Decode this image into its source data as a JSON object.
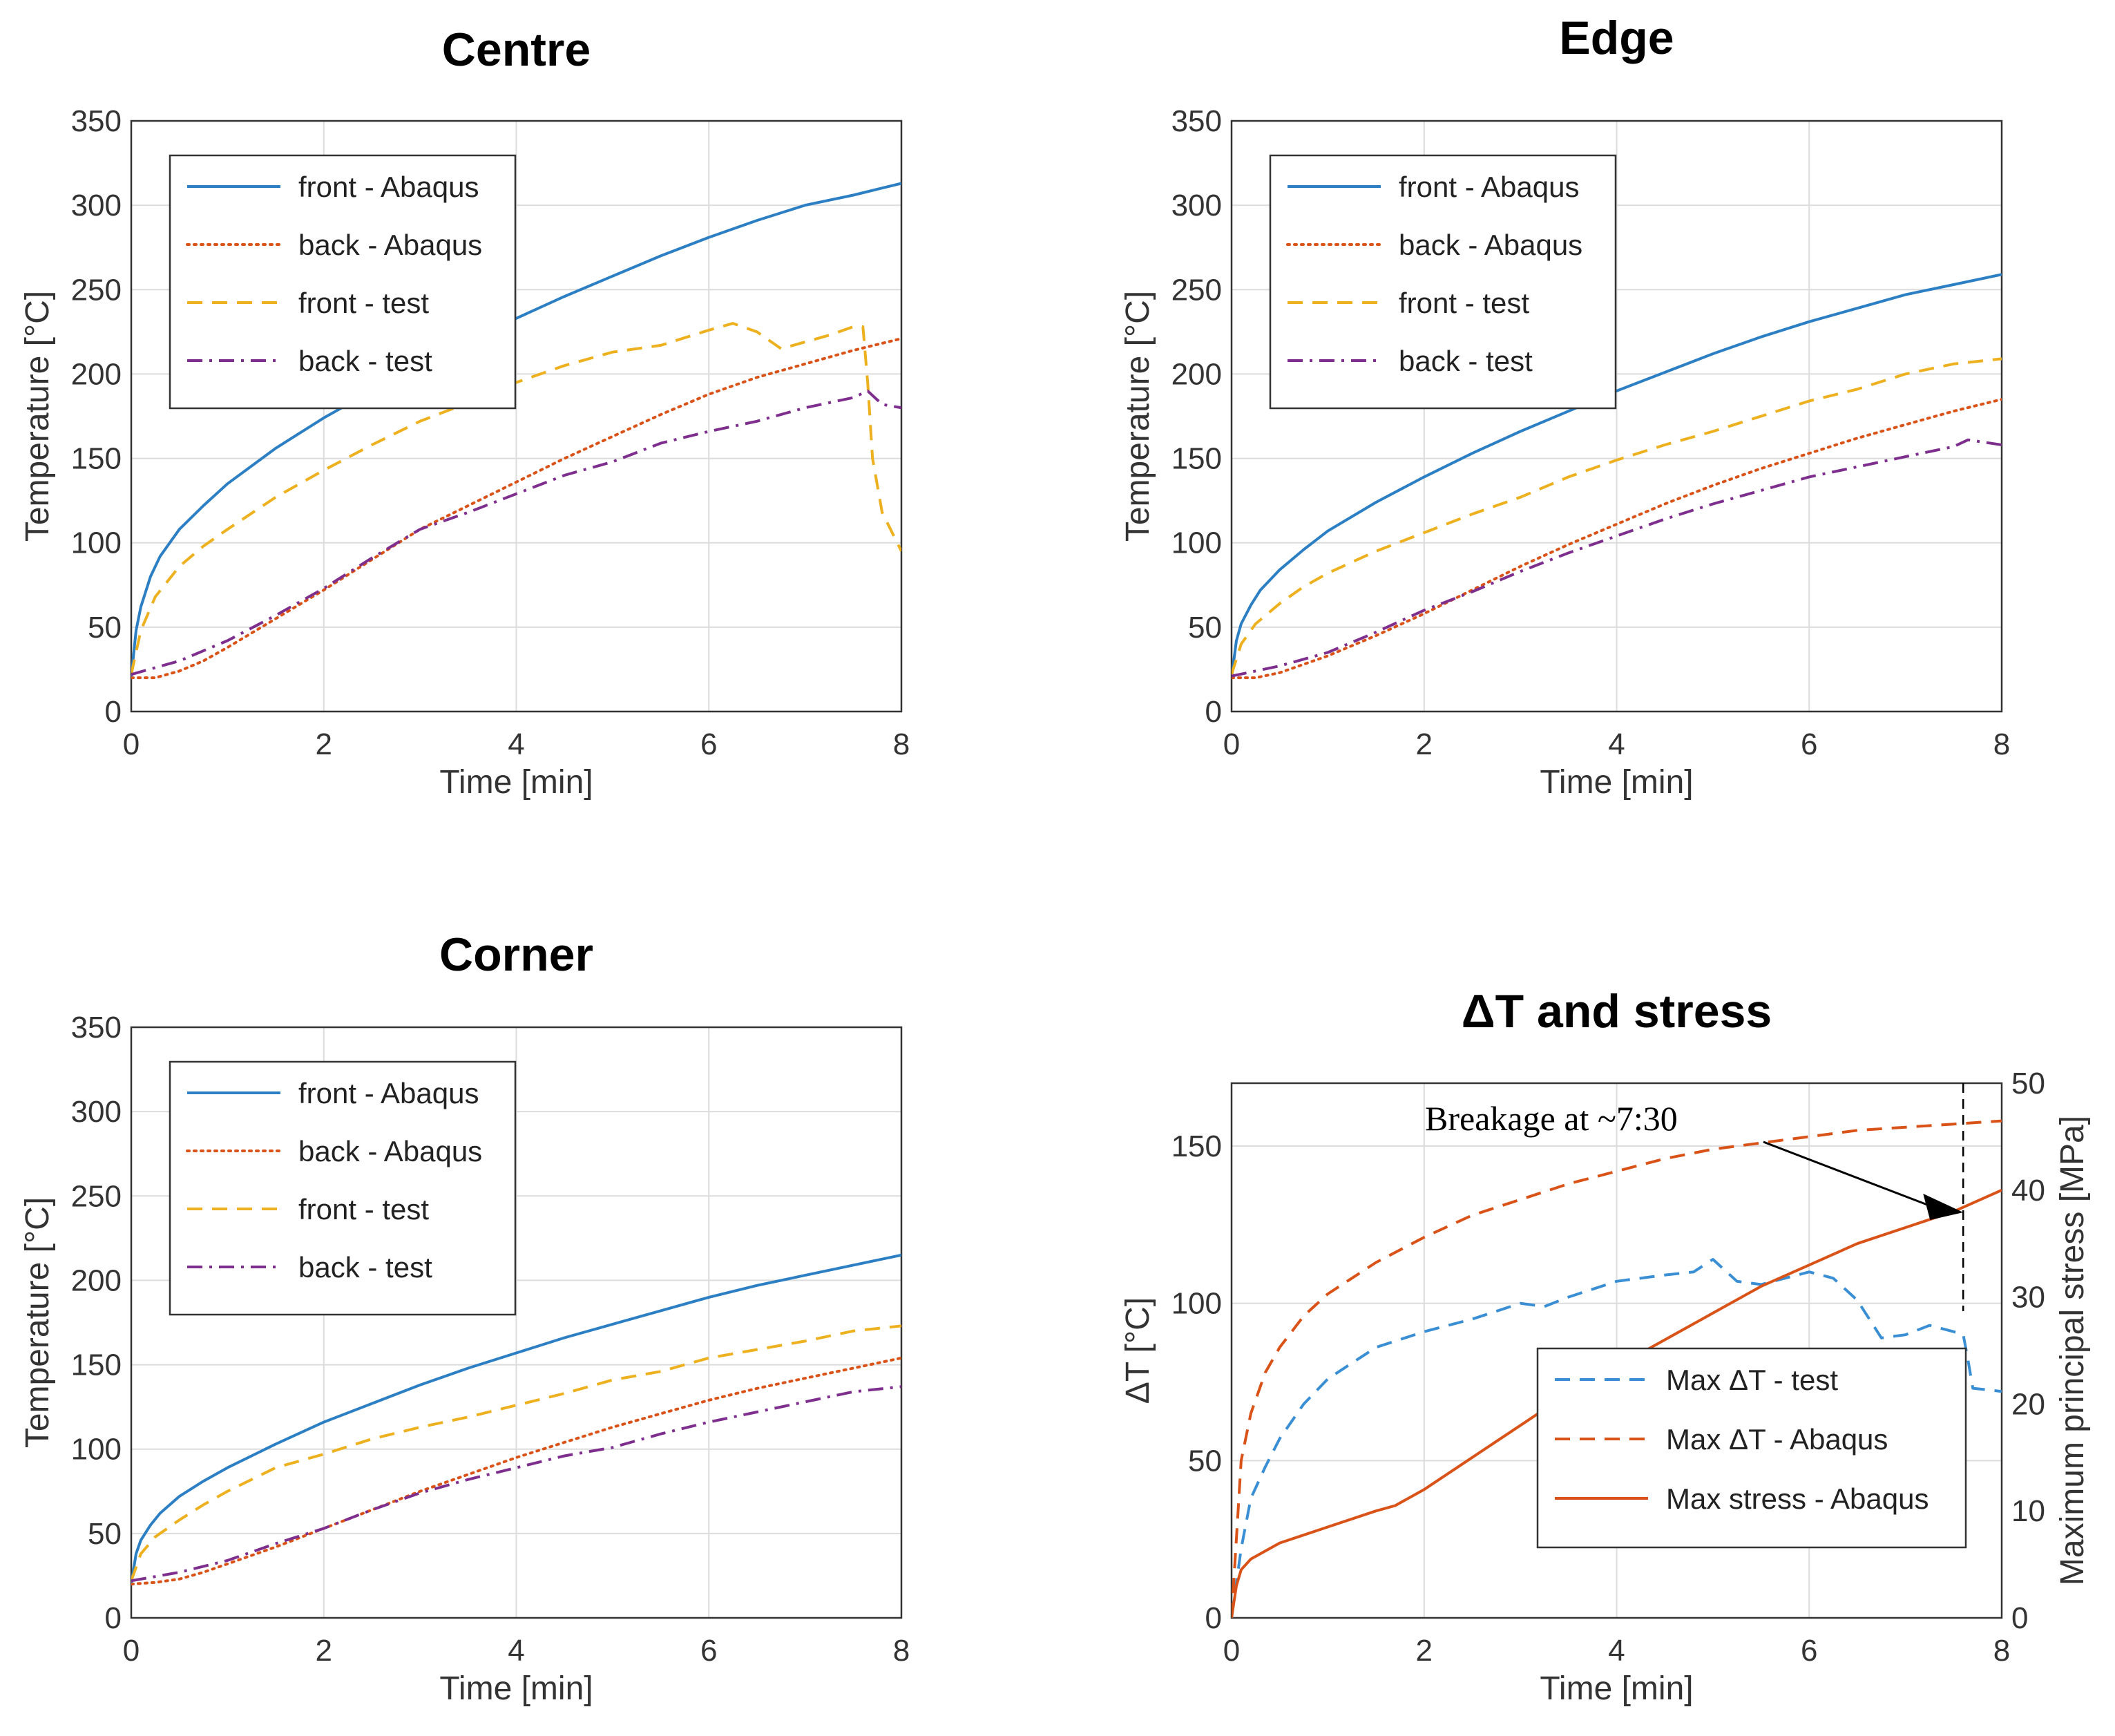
{
  "colors": {
    "front_abaqus": "#2d7fc4",
    "back_abaqus": "#d95319",
    "front_test": "#edb120",
    "back_test": "#7e2f8e",
    "dt_test": "#3a8fd4",
    "dt_abaqus": "#d95319",
    "stress": "#d95319"
  },
  "chart_data": [
    {
      "id": "centre",
      "type": "line",
      "title": "Centre",
      "xlabel": "Time [min]",
      "ylabel": "Temperature [°C]",
      "xlim": [
        0,
        8
      ],
      "ylim": [
        0,
        350
      ],
      "xticks": [
        0,
        2,
        4,
        6,
        8
      ],
      "yticks": [
        0,
        50,
        100,
        150,
        200,
        250,
        300,
        350
      ],
      "grid": true,
      "legend": "top-left",
      "series": [
        {
          "name": "front - Abaqus",
          "style": "solid",
          "color_key": "front_abaqus",
          "x": [
            0,
            0.05,
            0.1,
            0.2,
            0.3,
            0.5,
            0.75,
            1,
            1.5,
            2,
            2.5,
            3,
            3.5,
            4,
            4.5,
            5,
            5.5,
            6,
            6.5,
            7,
            7.5,
            8
          ],
          "y": [
            20,
            48,
            62,
            80,
            92,
            108,
            122,
            135,
            156,
            174,
            190,
            205,
            219,
            233,
            246,
            258,
            270,
            281,
            291,
            300,
            306,
            313
          ]
        },
        {
          "name": "back - Abaqus",
          "style": "dotted",
          "color_key": "back_abaqus",
          "x": [
            0,
            0.25,
            0.5,
            0.75,
            1,
            1.5,
            2,
            2.5,
            3,
            3.5,
            4,
            4.5,
            5,
            5.5,
            6,
            6.5,
            7,
            7.5,
            8
          ],
          "y": [
            20,
            20,
            24,
            30,
            38,
            55,
            72,
            90,
            108,
            122,
            136,
            150,
            163,
            176,
            188,
            198,
            206,
            214,
            221
          ]
        },
        {
          "name": "front - test",
          "style": "dashed",
          "color_key": "front_test",
          "x": [
            0,
            0.1,
            0.25,
            0.5,
            0.75,
            1,
            1.5,
            2,
            2.5,
            3,
            3.5,
            4,
            4.5,
            5,
            5.5,
            6,
            6.25,
            6.5,
            6.75,
            7,
            7.25,
            7.5,
            7.6,
            7.65,
            7.7,
            7.8,
            8
          ],
          "y": [
            22,
            48,
            68,
            86,
            98,
            108,
            127,
            143,
            158,
            172,
            183,
            195,
            205,
            213,
            217,
            226,
            230,
            225,
            215,
            219,
            223,
            228,
            228,
            195,
            150,
            118,
            95
          ]
        },
        {
          "name": "back - test",
          "style": "dashdot",
          "color_key": "back_test",
          "x": [
            0,
            0.5,
            1,
            1.5,
            2,
            2.5,
            3,
            3.5,
            4,
            4.5,
            5,
            5.5,
            6,
            6.5,
            7,
            7.5,
            7.65,
            7.8,
            8
          ],
          "y": [
            22,
            30,
            42,
            57,
            73,
            91,
            108,
            118,
            129,
            140,
            148,
            159,
            166,
            172,
            180,
            186,
            190,
            182,
            180
          ]
        }
      ]
    },
    {
      "id": "edge",
      "type": "line",
      "title": "Edge",
      "xlabel": "Time [min]",
      "ylabel": "Temperature [°C]",
      "xlim": [
        0,
        8
      ],
      "ylim": [
        0,
        350
      ],
      "xticks": [
        0,
        2,
        4,
        6,
        8
      ],
      "yticks": [
        0,
        50,
        100,
        150,
        200,
        250,
        300,
        350
      ],
      "grid": true,
      "legend": "top-left",
      "series": [
        {
          "name": "front - Abaqus",
          "style": "solid",
          "color_key": "front_abaqus",
          "x": [
            0,
            0.05,
            0.1,
            0.2,
            0.3,
            0.5,
            0.75,
            1,
            1.5,
            2,
            2.5,
            3,
            3.5,
            4,
            4.5,
            5,
            5.5,
            6,
            6.5,
            7,
            7.5,
            8
          ],
          "y": [
            20,
            42,
            52,
            63,
            72,
            84,
            96,
            107,
            124,
            139,
            153,
            166,
            178,
            190,
            201,
            212,
            222,
            231,
            239,
            247,
            253,
            259
          ]
        },
        {
          "name": "back - Abaqus",
          "style": "dotted",
          "color_key": "back_abaqus",
          "x": [
            0,
            0.25,
            0.5,
            0.75,
            1,
            1.5,
            2,
            2.5,
            3,
            3.5,
            4,
            4.5,
            5,
            5.5,
            6,
            6.5,
            7,
            7.5,
            8
          ],
          "y": [
            20,
            20,
            23,
            28,
            33,
            45,
            58,
            72,
            86,
            99,
            111,
            123,
            134,
            144,
            153,
            162,
            170,
            178,
            185
          ]
        },
        {
          "name": "front - test",
          "style": "dashed",
          "color_key": "front_test",
          "x": [
            0,
            0.1,
            0.25,
            0.5,
            0.75,
            1,
            1.5,
            2,
            2.5,
            3,
            3.5,
            4,
            4.5,
            5,
            5.5,
            6,
            6.5,
            7,
            7.5,
            8
          ],
          "y": [
            22,
            40,
            52,
            64,
            74,
            82,
            95,
            106,
            117,
            127,
            139,
            149,
            158,
            166,
            175,
            184,
            191,
            200,
            206,
            209
          ]
        },
        {
          "name": "back - test",
          "style": "dashdot",
          "color_key": "back_test",
          "x": [
            0,
            0.5,
            1,
            1.5,
            2,
            2.5,
            3,
            3.5,
            4,
            4.5,
            5,
            5.5,
            6,
            6.5,
            7,
            7.5,
            7.65,
            8
          ],
          "y": [
            21,
            27,
            35,
            47,
            60,
            71,
            83,
            94,
            104,
            114,
            123,
            131,
            139,
            145,
            151,
            157,
            161,
            158
          ]
        }
      ]
    },
    {
      "id": "corner",
      "type": "line",
      "title": "Corner",
      "xlabel": "Time [min]",
      "ylabel": "Temperature [°C]",
      "xlim": [
        0,
        8
      ],
      "ylim": [
        0,
        350
      ],
      "xticks": [
        0,
        2,
        4,
        6,
        8
      ],
      "yticks": [
        0,
        50,
        100,
        150,
        200,
        250,
        300,
        350
      ],
      "grid": true,
      "legend": "top-left",
      "series": [
        {
          "name": "front - Abaqus",
          "style": "solid",
          "color_key": "front_abaqus",
          "x": [
            0,
            0.05,
            0.1,
            0.2,
            0.3,
            0.5,
            0.75,
            1,
            1.5,
            2,
            2.5,
            3,
            3.5,
            4,
            4.5,
            5,
            5.5,
            6,
            6.5,
            7,
            7.5,
            8
          ],
          "y": [
            20,
            38,
            46,
            55,
            62,
            72,
            81,
            89,
            103,
            116,
            127,
            138,
            148,
            157,
            166,
            174,
            182,
            190,
            197,
            203,
            209,
            215
          ]
        },
        {
          "name": "back - Abaqus",
          "style": "dotted",
          "color_key": "back_abaqus",
          "x": [
            0,
            0.25,
            0.5,
            0.75,
            1,
            1.5,
            2,
            2.5,
            3,
            3.5,
            4,
            4.5,
            5,
            5.5,
            6,
            6.5,
            7,
            7.5,
            8
          ],
          "y": [
            20,
            21,
            23,
            27,
            32,
            42,
            53,
            64,
            75,
            85,
            95,
            104,
            113,
            121,
            129,
            136,
            142,
            148,
            154
          ]
        },
        {
          "name": "front - test",
          "style": "dashed",
          "color_key": "front_test",
          "x": [
            0,
            0.1,
            0.25,
            0.5,
            0.75,
            1,
            1.5,
            2,
            2.5,
            3,
            3.5,
            4,
            4.5,
            5,
            5.5,
            6,
            6.5,
            7,
            7.5,
            8
          ],
          "y": [
            22,
            38,
            48,
            58,
            67,
            75,
            89,
            97,
            106,
            113,
            119,
            126,
            133,
            141,
            146,
            154,
            159,
            164,
            170,
            173
          ]
        },
        {
          "name": "back - test",
          "style": "dashdot",
          "color_key": "back_test",
          "x": [
            0,
            0.5,
            1,
            1.5,
            2,
            2.5,
            3,
            3.5,
            4,
            4.5,
            5,
            5.5,
            6,
            6.5,
            7,
            7.5,
            8
          ],
          "y": [
            22,
            27,
            34,
            44,
            53,
            64,
            74,
            82,
            89,
            96,
            101,
            109,
            116,
            122,
            128,
            134,
            137
          ]
        }
      ]
    },
    {
      "id": "dt_stress",
      "type": "line",
      "title": "ΔT and stress",
      "xlabel": "Time [min]",
      "ylabel": "ΔT [°C]",
      "ylabel_right": "Maximum principal stress [MPa]",
      "xlim": [
        0,
        8
      ],
      "ylim": [
        0,
        170
      ],
      "ylim_right": [
        0,
        50
      ],
      "xticks": [
        0,
        2,
        4,
        6,
        8
      ],
      "yticks": [
        0,
        50,
        100,
        150
      ],
      "yticks_right": [
        0,
        10,
        20,
        30,
        40,
        50
      ],
      "grid": true,
      "legend": "bottom-right",
      "annotation": {
        "text": "Breakage at ~7:30",
        "x": 7.6
      },
      "series": [
        {
          "name": "Max ΔT - test",
          "style": "dashed",
          "color_key": "dt_test",
          "axis": "left",
          "x": [
            0,
            0.1,
            0.2,
            0.35,
            0.5,
            0.75,
            1,
            1.5,
            2,
            2.5,
            3,
            3.25,
            3.5,
            4,
            4.5,
            4.8,
            5,
            5.25,
            5.5,
            6,
            6.25,
            6.5,
            6.75,
            7,
            7.25,
            7.5,
            7.6,
            7.65,
            7.7,
            8
          ],
          "y": [
            0,
            22,
            38,
            48,
            57,
            68,
            76,
            86,
            91,
            95,
            100,
            99,
            102,
            107,
            109,
            110,
            114,
            107,
            106,
            110,
            108,
            101,
            89,
            90,
            93,
            91,
            90,
            82,
            73,
            72
          ]
        },
        {
          "name": "Max ΔT - Abaqus",
          "style": "dashed",
          "color_key": "dt_abaqus",
          "axis": "left",
          "x": [
            0,
            0.1,
            0.2,
            0.35,
            0.5,
            0.75,
            1,
            1.5,
            2,
            2.5,
            3,
            3.5,
            4,
            4.5,
            5,
            5.5,
            6,
            6.5,
            7,
            7.5,
            8
          ],
          "y": [
            0,
            50,
            65,
            78,
            86,
            96,
            103,
            113,
            121,
            128,
            133,
            138,
            142,
            146,
            149,
            151,
            153,
            155,
            156,
            157,
            158
          ]
        },
        {
          "name": "Max stress - Abaqus",
          "style": "solid",
          "color_key": "stress",
          "axis": "right",
          "x": [
            0,
            0.05,
            0.1,
            0.2,
            0.3,
            0.5,
            1,
            1.5,
            1.7,
            2,
            2.5,
            3,
            3.5,
            4,
            4.5,
            5,
            5.5,
            6,
            6.5,
            7,
            7.5,
            8
          ],
          "y": [
            0,
            3,
            4.5,
            5.5,
            6,
            7,
            8.5,
            10,
            10.5,
            12,
            15,
            18,
            21,
            23.5,
            26,
            28.5,
            31,
            33,
            35,
            36.5,
            38,
            40
          ]
        }
      ]
    }
  ]
}
